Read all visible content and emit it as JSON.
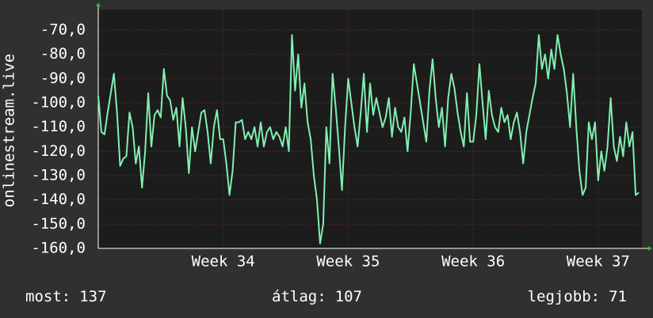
{
  "chart_data": {
    "type": "line",
    "ylabel": "onlinestream.live",
    "color": "#80f0b0",
    "grid": true,
    "xlim": [
      33.0,
      37.35
    ],
    "ylim": [
      -160,
      -61.5
    ],
    "yticks": [
      {
        "value": -70,
        "label": "-70,0"
      },
      {
        "value": -80,
        "label": "-80,0"
      },
      {
        "value": -90,
        "label": "-90,0"
      },
      {
        "value": -100,
        "label": "-100,0"
      },
      {
        "value": -110,
        "label": "-110,0"
      },
      {
        "value": -120,
        "label": "-120,0"
      },
      {
        "value": -130,
        "label": "-130,0"
      },
      {
        "value": -140,
        "label": "-140,0"
      },
      {
        "value": -150,
        "label": "-150,0"
      },
      {
        "value": -160,
        "label": "-160,0"
      }
    ],
    "xticks": [
      {
        "value": 34,
        "label": "Week 34"
      },
      {
        "value": 35,
        "label": "Week 35"
      },
      {
        "value": 36,
        "label": "Week 36"
      },
      {
        "value": 37,
        "label": "Week 37"
      }
    ],
    "x": [
      33.0,
      33.025,
      33.05,
      33.075,
      33.1,
      33.125,
      33.15,
      33.175,
      33.2,
      33.225,
      33.25,
      33.275,
      33.3,
      33.325,
      33.35,
      33.375,
      33.4,
      33.425,
      33.45,
      33.475,
      33.5,
      33.525,
      33.55,
      33.575,
      33.6,
      33.625,
      33.65,
      33.675,
      33.7,
      33.725,
      33.75,
      33.775,
      33.8,
      33.825,
      33.85,
      33.875,
      33.9,
      33.925,
      33.95,
      33.975,
      34.0,
      34.025,
      34.05,
      34.075,
      34.1,
      34.125,
      34.15,
      34.175,
      34.2,
      34.225,
      34.25,
      34.275,
      34.3,
      34.325,
      34.35,
      34.375,
      34.4,
      34.425,
      34.45,
      34.475,
      34.5,
      34.525,
      34.55,
      34.575,
      34.6,
      34.625,
      34.65,
      34.675,
      34.7,
      34.725,
      34.75,
      34.775,
      34.8,
      34.825,
      34.85,
      34.875,
      34.9,
      34.925,
      34.95,
      34.975,
      35.0,
      35.025,
      35.05,
      35.075,
      35.1,
      35.125,
      35.15,
      35.175,
      35.2,
      35.225,
      35.25,
      35.275,
      35.3,
      35.325,
      35.35,
      35.375,
      35.4,
      35.425,
      35.45,
      35.475,
      35.5,
      35.525,
      35.55,
      35.575,
      35.6,
      35.625,
      35.65,
      35.675,
      35.7,
      35.725,
      35.75,
      35.775,
      35.8,
      35.825,
      35.85,
      35.875,
      35.9,
      35.925,
      35.95,
      35.975,
      36.0,
      36.025,
      36.05,
      36.075,
      36.1,
      36.125,
      36.15,
      36.175,
      36.2,
      36.225,
      36.25,
      36.275,
      36.3,
      36.325,
      36.35,
      36.375,
      36.4,
      36.425,
      36.45,
      36.475,
      36.5,
      36.525,
      36.55,
      36.575,
      36.6,
      36.625,
      36.65,
      36.675,
      36.7,
      36.725,
      36.75,
      36.775,
      36.8,
      36.825,
      36.85,
      36.875,
      36.9,
      36.925,
      36.95,
      36.975,
      37.0,
      37.025,
      37.05,
      37.075,
      37.1,
      37.125,
      37.15,
      37.175,
      37.2,
      37.225,
      37.25,
      37.275,
      37.3,
      37.325
    ],
    "values": [
      -97,
      -112,
      -113,
      -104,
      -96,
      -88,
      -104,
      -126,
      -123,
      -122,
      -104,
      -110,
      -125,
      -118,
      -135,
      -120,
      -96,
      -118,
      -105,
      -103,
      -106,
      -86,
      -97,
      -99,
      -107,
      -102,
      -118,
      -98,
      -110,
      -129,
      -110,
      -120,
      -112,
      -104,
      -103,
      -112,
      -125,
      -110,
      -103,
      -115,
      -115,
      -125,
      -138,
      -128,
      -108,
      -108,
      -107,
      -115,
      -112,
      -115,
      -110,
      -118,
      -108,
      -118,
      -112,
      -110,
      -115,
      -112,
      -114,
      -118,
      -110,
      -120,
      -72,
      -95,
      -80,
      -102,
      -92,
      -108,
      -115,
      -130,
      -140,
      -158,
      -150,
      -110,
      -125,
      -88,
      -102,
      -118,
      -136,
      -110,
      -90,
      -100,
      -110,
      -118,
      -104,
      -88,
      -112,
      -92,
      -105,
      -98,
      -104,
      -110,
      -106,
      -98,
      -114,
      -102,
      -110,
      -112,
      -106,
      -120,
      -104,
      -84,
      -92,
      -100,
      -108,
      -116,
      -95,
      -82,
      -98,
      -110,
      -102,
      -118,
      -98,
      -88,
      -94,
      -104,
      -112,
      -118,
      -96,
      -116,
      -116,
      -105,
      -84,
      -100,
      -115,
      -95,
      -105,
      -110,
      -112,
      -102,
      -108,
      -105,
      -115,
      -108,
      -104,
      -112,
      -125,
      -112,
      -105,
      -98,
      -92,
      -72,
      -86,
      -80,
      -90,
      -78,
      -86,
      -72,
      -80,
      -86,
      -96,
      -110,
      -88,
      -110,
      -128,
      -138,
      -135,
      -108,
      -115,
      -108,
      -132,
      -120,
      -128,
      -118,
      -98,
      -118,
      -124,
      -114,
      -122,
      -108,
      -118,
      -112,
      -138,
      -137
    ],
    "stats": [
      {
        "label": "most:",
        "value": 137
      },
      {
        "label": "átlag:",
        "value": 107
      },
      {
        "label": "legjobb:",
        "value": 71
      }
    ]
  }
}
